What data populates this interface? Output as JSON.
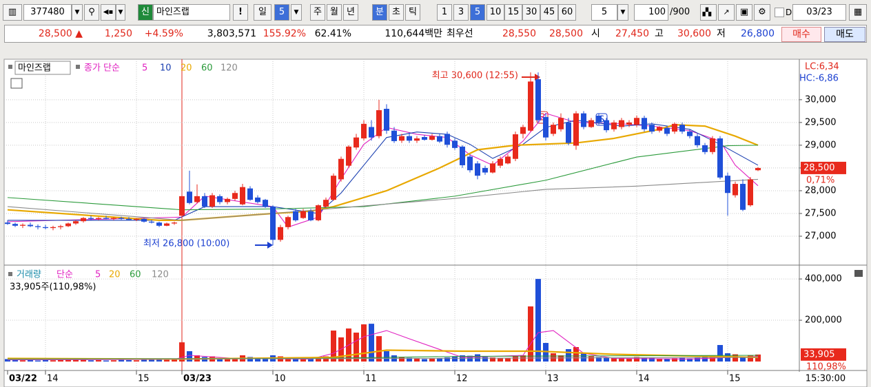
{
  "toolbar": {
    "code": "377480",
    "new_badge": "신",
    "name": "마인즈랩",
    "period": "일",
    "period_n": "5",
    "units": [
      "주",
      "월",
      "년",
      "분",
      "초",
      "틱"
    ],
    "minutes": [
      "1",
      "3",
      "5",
      "10",
      "15",
      "30",
      "45",
      "60"
    ],
    "count": "5",
    "range": "100",
    "range_max": "/900",
    "checkbox_label": "D",
    "date": "03/23"
  },
  "quote": {
    "price": "28,500 ▲",
    "change": "1,250",
    "change_pct": "+4.59%",
    "volume": "3,803,571",
    "volume_ratio": "155.92%",
    "turnover": "62.41%",
    "amount": "110,644백만",
    "best_label": "최우선",
    "best_ask": "28,550",
    "best_bid": "28,500",
    "open_label": "시",
    "open": "27,450",
    "high_label": "고",
    "high": "30,600",
    "low_label": "저",
    "low": "26,800",
    "buy": "매수",
    "sell": "매도"
  },
  "chart_data": [
    {
      "type": "candlestick",
      "name": "마인즈랩",
      "indicator_label": "종가 단순",
      "up_color": "#e8291c",
      "down_color": "#1f4fd8",
      "ylim": [
        26410,
        30860
      ],
      "yticks": [
        {
          "value": 27000,
          "label": "27,000"
        },
        {
          "value": 27500,
          "label": "27,500"
        },
        {
          "value": 28000,
          "label": "28,000"
        },
        {
          "value": 28500,
          "label": "28,500"
        },
        {
          "value": 29000,
          "label": "29,000"
        },
        {
          "value": 29500,
          "label": "29,500"
        },
        {
          "value": 30000,
          "label": "30,000"
        }
      ],
      "grid": true,
      "candles": [
        [
          27300,
          27350,
          27250,
          27270
        ],
        [
          27270,
          27300,
          27200,
          27230
        ],
        [
          27230,
          27280,
          27180,
          27250
        ],
        [
          27250,
          27300,
          27200,
          27220
        ],
        [
          27220,
          27260,
          27150,
          27200
        ],
        [
          27200,
          27250,
          27150,
          27180
        ],
        [
          27180,
          27230,
          27130,
          27200
        ],
        [
          27200,
          27250,
          27150,
          27220
        ],
        [
          27220,
          27300,
          27200,
          27280
        ],
        [
          27280,
          27350,
          27250,
          27330
        ],
        [
          27330,
          27420,
          27300,
          27400
        ],
        [
          27400,
          27450,
          27350,
          27380
        ],
        [
          27380,
          27420,
          27350,
          27400
        ],
        [
          27400,
          27450,
          27370,
          27380
        ],
        [
          27380,
          27420,
          27350,
          27400
        ],
        [
          27400,
          27430,
          27360,
          27380
        ],
        [
          27380,
          27420,
          27340,
          27360
        ],
        [
          27360,
          27400,
          27330,
          27380
        ],
        [
          27380,
          27400,
          27300,
          27320
        ],
        [
          27320,
          27360,
          27280,
          27300
        ],
        [
          27300,
          27320,
          27200,
          27230
        ],
        [
          27230,
          27300,
          27220,
          27280
        ],
        [
          27280,
          27320,
          27250,
          27300
        ],
        [
          27450,
          28230,
          27400,
          27880
        ],
        [
          27980,
          28440,
          27700,
          27730
        ],
        [
          27750,
          28140,
          27720,
          27880
        ],
        [
          27880,
          27950,
          27620,
          27650
        ],
        [
          27650,
          27950,
          27620,
          27900
        ],
        [
          27880,
          27920,
          27700,
          27750
        ],
        [
          27750,
          27850,
          27700,
          27820
        ],
        [
          27820,
          28000,
          27780,
          27950
        ],
        [
          27700,
          28150,
          27680,
          28080
        ],
        [
          28050,
          28100,
          27780,
          27800
        ],
        [
          27850,
          27900,
          27720,
          27750
        ],
        [
          27800,
          27820,
          27620,
          27650
        ],
        [
          27650,
          27680,
          26800,
          26920
        ],
        [
          26920,
          27250,
          26880,
          27200
        ],
        [
          27200,
          27450,
          27150,
          27420
        ],
        [
          27550,
          27600,
          27320,
          27350
        ],
        [
          27400,
          27600,
          27380,
          27550
        ],
        [
          27550,
          27600,
          27330,
          27350
        ],
        [
          27350,
          27700,
          27330,
          27680
        ],
        [
          27650,
          27850,
          27620,
          27800
        ],
        [
          27800,
          28380,
          27780,
          28330
        ],
        [
          28250,
          28750,
          28200,
          28700
        ],
        [
          28550,
          29000,
          28500,
          28970
        ],
        [
          28950,
          29250,
          28900,
          29170
        ],
        [
          29150,
          29550,
          29100,
          29470
        ],
        [
          29400,
          29550,
          29100,
          29170
        ],
        [
          29200,
          30000,
          29150,
          29770
        ],
        [
          29800,
          29900,
          29250,
          29320
        ],
        [
          29320,
          29400,
          29050,
          29090
        ],
        [
          29100,
          29250,
          29050,
          29200
        ],
        [
          29200,
          29280,
          29050,
          29100
        ],
        [
          29100,
          29200,
          29050,
          29150
        ],
        [
          29180,
          29220,
          29100,
          29120
        ],
        [
          29120,
          29250,
          29100,
          29200
        ],
        [
          29200,
          29250,
          29050,
          29080
        ],
        [
          29250,
          29300,
          28950,
          29010
        ],
        [
          29100,
          29150,
          28900,
          28940
        ],
        [
          28970,
          29000,
          28500,
          28560
        ],
        [
          28750,
          28800,
          28400,
          28450
        ],
        [
          28600,
          28650,
          28250,
          28330
        ],
        [
          28500,
          28550,
          28350,
          28400
        ],
        [
          28400,
          28650,
          28380,
          28600
        ],
        [
          28550,
          28750,
          28500,
          28700
        ],
        [
          28600,
          28800,
          28580,
          28750
        ],
        [
          28700,
          29300,
          28650,
          29240
        ],
        [
          29250,
          29450,
          29150,
          29400
        ],
        [
          29320,
          30600,
          29300,
          30400
        ],
        [
          30450,
          30600,
          29500,
          29550
        ],
        [
          29620,
          29700,
          29100,
          29170
        ],
        [
          29250,
          29500,
          29200,
          29450
        ],
        [
          29350,
          29700,
          29300,
          29600
        ],
        [
          29500,
          29600,
          29000,
          29050
        ],
        [
          28990,
          29750,
          28900,
          29700
        ],
        [
          29700,
          29750,
          29350,
          29400
        ],
        [
          29400,
          29600,
          29380,
          29550
        ],
        [
          29650,
          29700,
          29450,
          29500
        ],
        [
          29550,
          29600,
          29280,
          29330
        ],
        [
          29350,
          29550,
          29300,
          29500
        ],
        [
          29400,
          29600,
          29350,
          29550
        ],
        [
          29450,
          29550,
          29400,
          29500
        ],
        [
          29450,
          29650,
          29400,
          29600
        ],
        [
          29600,
          29650,
          29300,
          29350
        ],
        [
          29450,
          29500,
          29250,
          29300
        ],
        [
          29320,
          29420,
          29280,
          29400
        ],
        [
          29380,
          29420,
          29200,
          29250
        ],
        [
          29300,
          29500,
          29250,
          29470
        ],
        [
          29450,
          29500,
          29250,
          29300
        ],
        [
          29300,
          29350,
          29150,
          29200
        ],
        [
          29200,
          29250,
          28950,
          29000
        ],
        [
          29000,
          29050,
          28800,
          28850
        ],
        [
          28850,
          29200,
          28800,
          29150
        ],
        [
          29150,
          29200,
          28250,
          28290
        ],
        [
          28330,
          28400,
          27450,
          27950
        ],
        [
          27900,
          28200,
          27850,
          28150
        ],
        [
          28150,
          28250,
          27550,
          27580
        ],
        [
          27680,
          28300,
          27650,
          28250
        ],
        [
          28450,
          28520,
          28430,
          28500
        ]
      ],
      "series": [
        {
          "name": "5",
          "color": "#e020c0",
          "x": [
            0,
            23,
            26,
            35,
            37,
            41,
            44,
            47,
            50,
            54,
            58,
            61,
            64,
            68,
            71,
            75,
            81,
            85,
            90,
            94,
            96,
            99
          ],
          "values": [
            27320,
            27420,
            27880,
            27650,
            27200,
            27420,
            28260,
            29020,
            29390,
            29240,
            29170,
            28790,
            28560,
            29090,
            29700,
            29500,
            29470,
            29420,
            29320,
            29090,
            28560,
            28110
          ]
        },
        {
          "name": "10",
          "color": "#1a3fb0",
          "x": [
            0,
            22,
            26,
            35,
            41,
            44,
            47,
            50,
            54,
            58,
            61,
            64,
            68,
            71,
            75,
            81,
            85,
            90,
            94,
            99
          ],
          "values": [
            27350,
            27350,
            27650,
            27650,
            27500,
            27950,
            28560,
            29170,
            29290,
            29240,
            29020,
            28710,
            29020,
            29390,
            29550,
            29420,
            29470,
            29350,
            29020,
            28560
          ]
        },
        {
          "name": "20",
          "color": "#e8a800",
          "x": [
            0,
            20,
            23,
            35,
            40,
            43,
            50,
            57,
            62,
            67,
            75,
            80,
            86,
            88,
            92,
            96,
            99
          ],
          "values": [
            27580,
            27350,
            27350,
            27500,
            27550,
            27650,
            28000,
            28500,
            28900,
            29000,
            29050,
            29150,
            29350,
            29450,
            29420,
            29200,
            29000
          ]
        },
        {
          "name": "60",
          "color": "#2a9a3a",
          "x": [
            0,
            23,
            35,
            47,
            59,
            71,
            83,
            95,
            99
          ],
          "values": [
            27850,
            27580,
            27600,
            27650,
            27880,
            28230,
            28740,
            28990,
            29000
          ]
        },
        {
          "name": "120",
          "color": "#8a8a8a",
          "x": [
            0,
            23,
            35,
            59,
            71,
            83,
            99
          ],
          "values": [
            27650,
            27350,
            27500,
            27830,
            28030,
            28100,
            28250
          ]
        }
      ],
      "max_label": "최고 30,600 (12:55)",
      "min_label": "최저 26,800 (10:00)",
      "buy_signal": "B",
      "sell_signal": "S",
      "current_label": "28,500",
      "change_label": "0,71%",
      "lc_label": "LC:6,34",
      "hc_label": "HC:-6,86"
    },
    {
      "type": "bar",
      "name": "거래량",
      "indicator_label": "단순",
      "volume_label": "33,905주(110,98%)",
      "ylim": [
        0,
        457000
      ],
      "yticks": [
        {
          "value": 200000,
          "label": "200,000"
        },
        {
          "value": 400000,
          "label": "400,000"
        }
      ],
      "grid": true,
      "categories": [
        "03/22",
        null,
        null,
        null,
        null,
        "14",
        null,
        null,
        null,
        null,
        null,
        null,
        null,
        null,
        null,
        null,
        null,
        "15",
        null,
        null,
        null,
        null,
        null,
        "03/23",
        null,
        null,
        null,
        null,
        null,
        null,
        null,
        null,
        null,
        null,
        null,
        "10",
        null,
        null,
        null,
        null,
        null,
        null,
        null,
        null,
        null,
        null,
        null,
        "11",
        null,
        null,
        null,
        null,
        null,
        null,
        null,
        null,
        null,
        null,
        null,
        "12",
        null,
        null,
        null,
        null,
        null,
        null,
        null,
        null,
        null,
        null,
        null,
        "13",
        null,
        null,
        null,
        null,
        null,
        null,
        null,
        null,
        null,
        null,
        null,
        "14",
        null,
        null,
        null,
        null,
        null,
        null,
        null,
        null,
        null,
        null,
        null,
        "15",
        null,
        null,
        null,
        null
      ],
      "values": [
        12000,
        8000,
        6000,
        7000,
        5000,
        9000,
        6000,
        8000,
        10000,
        12000,
        9000,
        6000,
        7000,
        5000,
        6000,
        8000,
        7000,
        6000,
        9000,
        10000,
        15000,
        8000,
        12000,
        93000,
        50000,
        30000,
        22000,
        25000,
        15000,
        18000,
        16000,
        30000,
        22000,
        15000,
        12000,
        30000,
        25000,
        20000,
        12000,
        15000,
        12000,
        20000,
        25000,
        150000,
        117000,
        160000,
        140000,
        180000,
        183000,
        123000,
        50000,
        30000,
        22000,
        18000,
        15000,
        12000,
        14000,
        16000,
        20000,
        25000,
        30000,
        28000,
        35000,
        22000,
        20000,
        18000,
        16000,
        25000,
        30000,
        267000,
        400000,
        90000,
        40000,
        30000,
        60000,
        70000,
        40000,
        25000,
        22000,
        20000,
        18000,
        20000,
        15000,
        22000,
        20000,
        18000,
        15000,
        14000,
        16000,
        18000,
        15000,
        20000,
        25000,
        30000,
        80000,
        40000,
        35000,
        25000,
        30000,
        33905
      ],
      "series": [
        {
          "name": "5",
          "color": "#e020c0",
          "x": [
            0,
            22,
            24,
            30,
            40,
            43,
            47,
            50,
            53,
            60,
            68,
            70,
            72,
            76,
            80,
            90,
            99
          ],
          "values": [
            8000,
            10000,
            30000,
            15000,
            12000,
            40000,
            120000,
            150000,
            110000,
            20000,
            30000,
            140000,
            150000,
            40000,
            15000,
            12000,
            25000
          ]
        },
        {
          "name": "20",
          "color": "#e8a800",
          "x": [
            0,
            23,
            43,
            50,
            60,
            70,
            80,
            99
          ],
          "values": [
            15000,
            12000,
            20000,
            55000,
            50000,
            50000,
            35000,
            20000
          ]
        },
        {
          "name": "60",
          "color": "#2a9a3a",
          "x": [
            0,
            40,
            60,
            99
          ],
          "values": [
            12000,
            15000,
            25000,
            30000
          ]
        },
        {
          "name": "120",
          "color": "#8a8a8a",
          "x": [
            0,
            50,
            99
          ],
          "values": [
            10000,
            15000,
            20000
          ]
        }
      ],
      "current_label": "33,905",
      "ratio_label": "110,98%",
      "time_label": "15:30:00"
    }
  ]
}
